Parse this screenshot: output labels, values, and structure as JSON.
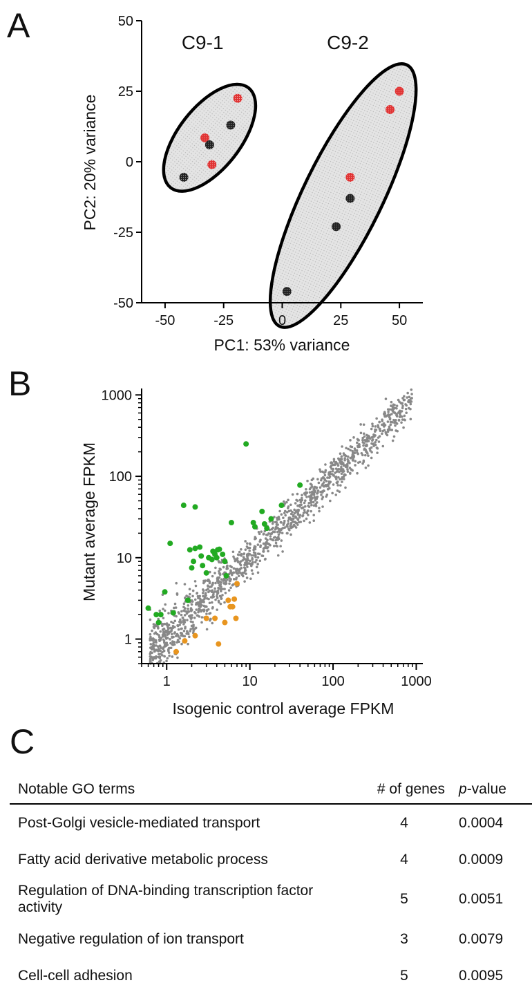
{
  "panels": {
    "a": "A",
    "b": "B",
    "c": "C"
  },
  "chart_data": [
    {
      "type": "scatter",
      "title": "",
      "xlabel": "PC1: 53% variance",
      "ylabel": "PC2: 20% variance",
      "xlim": [
        -60,
        60
      ],
      "ylim": [
        -50,
        50
      ],
      "xticks": [
        -50,
        -25,
        0,
        25,
        50
      ],
      "yticks": [
        50,
        25,
        0,
        -25,
        -50
      ],
      "grid": false,
      "groups": [
        {
          "label": "C9-1",
          "ellipse": {
            "cx": -31,
            "cy": 8.5,
            "rx": 27,
            "ry": 11,
            "angle": -52
          }
        },
        {
          "label": "C9-2",
          "ellipse": {
            "cx": 26,
            "cy": -12,
            "rx": 62,
            "ry": 14,
            "angle": -64
          }
        }
      ],
      "series": [
        {
          "color": "#e03333",
          "points": [
            [
              -19,
              22.5
            ],
            [
              -33,
              8.5
            ],
            [
              -30,
              -1
            ],
            [
              50,
              25
            ],
            [
              46,
              18.5
            ],
            [
              29,
              -5.5
            ]
          ]
        },
        {
          "color": "#222222",
          "points": [
            [
              -22,
              13
            ],
            [
              -31,
              6
            ],
            [
              -42,
              -5.5
            ],
            [
              29,
              -13
            ],
            [
              23,
              -23
            ],
            [
              2,
              -46
            ]
          ]
        }
      ]
    },
    {
      "type": "scatter",
      "title": "",
      "xlabel": "Isogenic control average FPKM",
      "ylabel": "Mutant average FPKM",
      "xscale": "log",
      "yscale": "log",
      "xlim": [
        0.5,
        1200
      ],
      "ylim": [
        0.5,
        1200
      ],
      "xticks": [
        "1",
        "10",
        "100",
        "1000"
      ],
      "yticks": [
        "1",
        "10",
        "100",
        "1000"
      ],
      "grid": false,
      "series": [
        {
          "color": "#888888",
          "note_background": "dense diagonal cloud of genes",
          "points": []
        },
        {
          "color": "#22aa22",
          "points": [
            [
              0.6,
              2.4
            ],
            [
              0.75,
              2.0
            ],
            [
              0.8,
              1.6
            ],
            [
              0.85,
              2.0
            ],
            [
              0.95,
              3.8
            ],
            [
              1.1,
              15
            ],
            [
              1.2,
              2.1
            ],
            [
              1.6,
              44
            ],
            [
              2.2,
              42
            ],
            [
              1.8,
              3.0
            ],
            [
              2.0,
              7.5
            ],
            [
              1.9,
              12.5
            ],
            [
              2.1,
              9.0
            ],
            [
              2.2,
              13
            ],
            [
              2.5,
              13.5
            ],
            [
              2.6,
              10.5
            ],
            [
              2.7,
              8.0
            ],
            [
              3.0,
              6.5
            ],
            [
              3.2,
              10
            ],
            [
              3.5,
              9.5
            ],
            [
              3.6,
              12
            ],
            [
              3.8,
              11
            ],
            [
              4.0,
              10
            ],
            [
              4.1,
              12.5
            ],
            [
              4.3,
              12.7
            ],
            [
              4.7,
              11
            ],
            [
              5.0,
              9.0
            ],
            [
              5.2,
              6.0
            ],
            [
              6.0,
              27
            ],
            [
              9.0,
              250
            ],
            [
              11,
              27
            ],
            [
              11.5,
              24
            ],
            [
              14,
              37
            ],
            [
              15,
              26
            ],
            [
              16,
              23
            ],
            [
              18,
              30
            ],
            [
              24,
              44
            ],
            [
              40,
              78
            ]
          ]
        },
        {
          "color": "#e8951f",
          "points": [
            [
              1.3,
              0.7
            ],
            [
              1.65,
              0.95
            ],
            [
              2.2,
              1.1
            ],
            [
              3.0,
              1.8
            ],
            [
              3.8,
              1.8
            ],
            [
              4.2,
              0.87
            ],
            [
              5.0,
              1.6
            ],
            [
              5.5,
              3.0
            ],
            [
              5.8,
              2.5
            ],
            [
              6.2,
              2.5
            ],
            [
              6.8,
              1.8
            ],
            [
              6.5,
              3.1
            ],
            [
              7.0,
              4.8
            ]
          ]
        }
      ]
    }
  ],
  "table": {
    "headers": {
      "term": "Notable GO terms",
      "genes": "# of genes",
      "p_italic": "p",
      "p_rest": "-value"
    },
    "rows": [
      {
        "term": "Post-Golgi vesicle-mediated transport",
        "genes": "4",
        "p": "0.0004"
      },
      {
        "term": "Fatty acid derivative metabolic process",
        "genes": "4",
        "p": "0.0009"
      },
      {
        "term": "Regulation of DNA-binding transcription factor activity",
        "genes": "5",
        "p": "0.0051"
      },
      {
        "term": "Negative regulation of ion transport",
        "genes": "3",
        "p": "0.0079"
      },
      {
        "term": "Cell-cell adhesion",
        "genes": "5",
        "p": "0.0095"
      }
    ]
  }
}
